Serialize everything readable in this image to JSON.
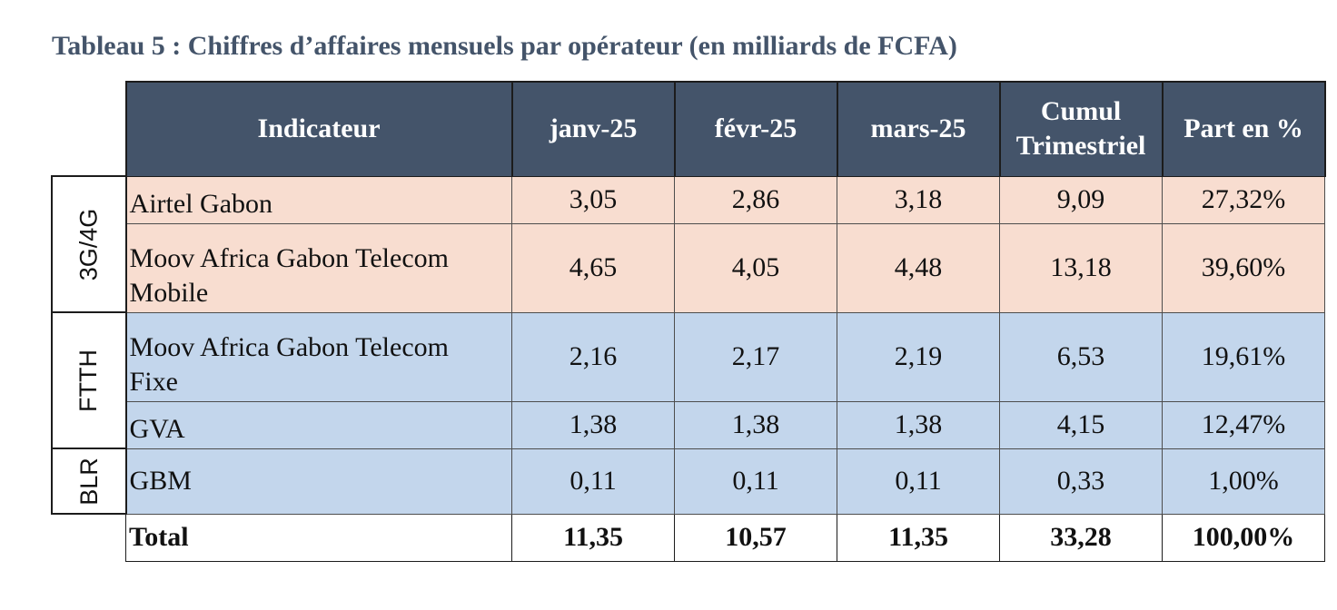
{
  "title": "Tableau 5 : Chiffres d’affaires mensuels par opérateur (en milliards de FCFA)",
  "columns": {
    "indicator": "Indicateur",
    "jan": "janv-25",
    "feb": "févr-25",
    "mar": "mars-25",
    "cumul_line1": "Cumul",
    "cumul_line2": "Trimestriel",
    "share": "Part en %"
  },
  "groups": {
    "g1": "3G/4G",
    "g2": "FTTH",
    "g3": "BLR"
  },
  "rows": [
    {
      "name": "Airtel Gabon",
      "jan": "3,05",
      "feb": "2,86",
      "mar": "3,18",
      "cumul": "9,09",
      "share": "27,32%"
    },
    {
      "name_line1": "Moov Africa Gabon Telecom",
      "name_line2": "Mobile",
      "jan": "4,65",
      "feb": "4,05",
      "mar": "4,48",
      "cumul": "13,18",
      "share": "39,60%"
    },
    {
      "name_line1": "Moov Africa Gabon Telecom",
      "name_line2": "Fixe",
      "jan": "2,16",
      "feb": "2,17",
      "mar": "2,19",
      "cumul": "6,53",
      "share": "19,61%"
    },
    {
      "name": "GVA",
      "jan": "1,38",
      "feb": "1,38",
      "mar": "1,38",
      "cumul": "4,15",
      "share": "12,47%"
    },
    {
      "name": "GBM",
      "jan": "0,11",
      "feb": "0,11",
      "mar": "0,11",
      "cumul": "0,33",
      "share": "1,00%"
    }
  ],
  "total": {
    "name": "Total",
    "jan": "11,35",
    "feb": "10,57",
    "mar": "11,35",
    "cumul": "33,28",
    "share": "100,00%"
  },
  "colors": {
    "header_bg": "#44546a",
    "peach_bg": "#f8ddd0",
    "blue_bg": "#c3d6ec",
    "title_text": "#44546a"
  }
}
